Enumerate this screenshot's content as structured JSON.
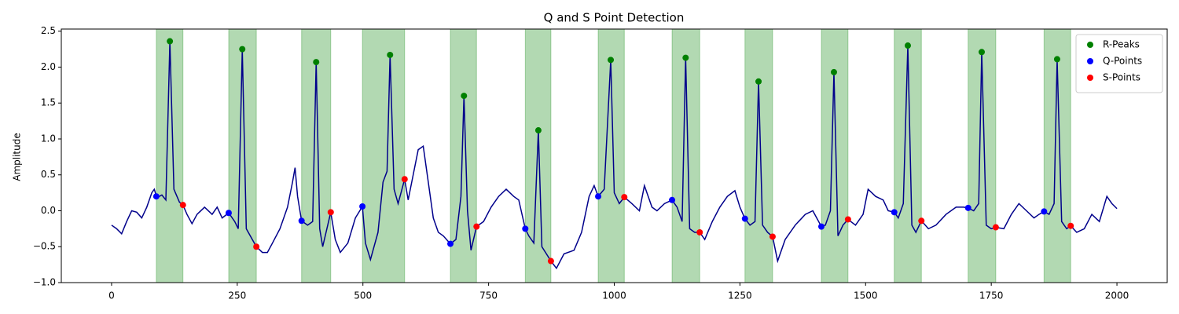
{
  "chart_data": {
    "type": "line",
    "title": "Q and S Point Detection",
    "y_label": "Amplitude",
    "xlim": [
      -100,
      2100
    ],
    "ylim": [
      -1.0,
      2.53
    ],
    "xticks": [
      0,
      250,
      500,
      750,
      1000,
      1250,
      1500,
      1750,
      2000
    ],
    "yticks": [
      {
        "value": -1.0,
        "label": "−1.0"
      },
      {
        "value": -0.5,
        "label": "−0.5"
      },
      {
        "value": 0.0,
        "label": "0.0"
      },
      0.5,
      {
        "value": 1.0,
        "label": "1.0"
      },
      1.5,
      {
        "value": 2.0,
        "label": "2.0"
      },
      2.5
    ],
    "legend": "upper right",
    "shaded_regions": {
      "color": "#008000",
      "spans": [
        [
          89,
          142
        ],
        [
          233,
          288
        ],
        [
          378,
          436
        ],
        [
          499,
          583
        ],
        [
          674,
          726
        ],
        [
          823,
          874
        ],
        [
          968,
          1020
        ],
        [
          1115,
          1170
        ],
        [
          1260,
          1315
        ],
        [
          1412,
          1465
        ],
        [
          1557,
          1611
        ],
        [
          1704,
          1759
        ],
        [
          1855,
          1908
        ]
      ]
    },
    "signal": {
      "color": "#00008b",
      "x": [
        0,
        10,
        20,
        30,
        40,
        50,
        60,
        70,
        80,
        85,
        90,
        100,
        108,
        116,
        124,
        135,
        142,
        150,
        160,
        170,
        185,
        200,
        210,
        220,
        233,
        245,
        252,
        260,
        268,
        280,
        288,
        300,
        310,
        320,
        335,
        350,
        360,
        365,
        370,
        378,
        390,
        400,
        407,
        414,
        420,
        430,
        436,
        445,
        455,
        470,
        485,
        499,
        505,
        515,
        530,
        540,
        548,
        554,
        562,
        570,
        583,
        590,
        600,
        610,
        620,
        630,
        640,
        650,
        660,
        674,
        685,
        695,
        701,
        708,
        715,
        726,
        740,
        755,
        770,
        785,
        800,
        810,
        823,
        830,
        840,
        849,
        856,
        865,
        874,
        885,
        900,
        920,
        935,
        950,
        960,
        968,
        980,
        993,
        1000,
        1010,
        1020,
        1035,
        1050,
        1060,
        1075,
        1085,
        1100,
        1115,
        1125,
        1135,
        1142,
        1150,
        1160,
        1170,
        1180,
        1195,
        1210,
        1225,
        1240,
        1250,
        1260,
        1270,
        1280,
        1287,
        1295,
        1305,
        1315,
        1325,
        1340,
        1360,
        1380,
        1395,
        1412,
        1420,
        1430,
        1437,
        1445,
        1455,
        1465,
        1480,
        1495,
        1505,
        1520,
        1535,
        1545,
        1557,
        1565,
        1575,
        1584,
        1592,
        1600,
        1611,
        1625,
        1640,
        1660,
        1680,
        1695,
        1704,
        1715,
        1725,
        1731,
        1740,
        1750,
        1759,
        1775,
        1790,
        1805,
        1820,
        1835,
        1845,
        1855,
        1865,
        1875,
        1881,
        1890,
        1900,
        1908,
        1920,
        1935,
        1950,
        1965,
        1980,
        1990,
        2000
      ],
      "values": [
        -0.2,
        -0.25,
        -0.32,
        -0.15,
        0.0,
        -0.02,
        -0.1,
        0.05,
        0.25,
        0.3,
        0.18,
        0.22,
        0.15,
        2.36,
        0.3,
        0.12,
        0.08,
        -0.05,
        -0.18,
        -0.05,
        0.05,
        -0.05,
        0.05,
        -0.1,
        -0.03,
        -0.15,
        -0.25,
        2.25,
        -0.25,
        -0.4,
        -0.5,
        -0.58,
        -0.58,
        -0.45,
        -0.25,
        0.05,
        0.4,
        0.6,
        0.2,
        -0.14,
        -0.2,
        -0.15,
        2.07,
        -0.25,
        -0.5,
        -0.2,
        -0.02,
        -0.4,
        -0.58,
        -0.45,
        -0.1,
        0.06,
        -0.45,
        -0.68,
        -0.3,
        0.4,
        0.55,
        2.17,
        0.3,
        0.1,
        0.44,
        0.15,
        0.5,
        0.85,
        0.9,
        0.4,
        -0.1,
        -0.3,
        -0.35,
        -0.46,
        -0.4,
        0.2,
        1.6,
        0.0,
        -0.55,
        -0.22,
        -0.15,
        0.05,
        0.2,
        0.3,
        0.2,
        0.15,
        -0.25,
        -0.35,
        -0.45,
        1.12,
        -0.5,
        -0.6,
        -0.7,
        -0.8,
        -0.6,
        -0.55,
        -0.3,
        0.2,
        0.35,
        0.2,
        0.3,
        2.1,
        0.25,
        0.1,
        0.19,
        0.1,
        0.0,
        0.35,
        0.05,
        0.0,
        0.1,
        0.15,
        0.05,
        -0.15,
        2.13,
        -0.25,
        -0.3,
        -0.3,
        -0.4,
        -0.15,
        0.05,
        0.2,
        0.28,
        0.05,
        -0.11,
        -0.2,
        -0.15,
        1.8,
        -0.2,
        -0.3,
        -0.36,
        -0.7,
        -0.4,
        -0.2,
        -0.05,
        0.0,
        -0.22,
        -0.2,
        0.0,
        1.93,
        -0.35,
        -0.2,
        -0.12,
        -0.2,
        -0.05,
        0.3,
        0.2,
        0.15,
        0.0,
        -0.02,
        -0.1,
        0.1,
        2.3,
        -0.2,
        -0.3,
        -0.14,
        -0.25,
        -0.2,
        -0.05,
        0.05,
        0.05,
        0.04,
        0.0,
        0.1,
        2.21,
        -0.2,
        -0.25,
        -0.23,
        -0.25,
        -0.05,
        0.1,
        0.0,
        -0.1,
        -0.05,
        -0.01,
        -0.05,
        0.1,
        2.11,
        -0.15,
        -0.25,
        -0.21,
        -0.3,
        -0.25,
        -0.05,
        -0.15,
        0.2,
        0.1,
        0.03
      ]
    },
    "series": [
      {
        "name": "R-Peaks",
        "color": "#008000",
        "x": [
          116,
          260,
          407,
          554,
          701,
          849,
          993,
          1142,
          1287,
          1437,
          1584,
          1731,
          1881
        ],
        "values": [
          2.36,
          2.25,
          2.07,
          2.17,
          1.6,
          1.12,
          2.1,
          2.13,
          1.8,
          1.93,
          2.3,
          2.21,
          2.11
        ]
      },
      {
        "name": "Q-Points",
        "color": "#0000ff",
        "x": [
          89,
          233,
          378,
          499,
          674,
          823,
          968,
          1115,
          1260,
          1412,
          1557,
          1704,
          1855
        ],
        "values": [
          0.2,
          -0.03,
          -0.14,
          0.06,
          -0.46,
          -0.25,
          0.2,
          0.15,
          -0.11,
          -0.22,
          -0.02,
          0.04,
          -0.01
        ]
      },
      {
        "name": "S-Points",
        "color": "#ff0000",
        "x": [
          142,
          288,
          436,
          583,
          726,
          874,
          1020,
          1170,
          1315,
          1465,
          1611,
          1759,
          1908
        ],
        "values": [
          0.08,
          -0.5,
          -0.02,
          0.44,
          -0.22,
          -0.7,
          0.19,
          -0.3,
          -0.36,
          -0.12,
          -0.14,
          -0.23,
          -0.21
        ]
      }
    ]
  }
}
